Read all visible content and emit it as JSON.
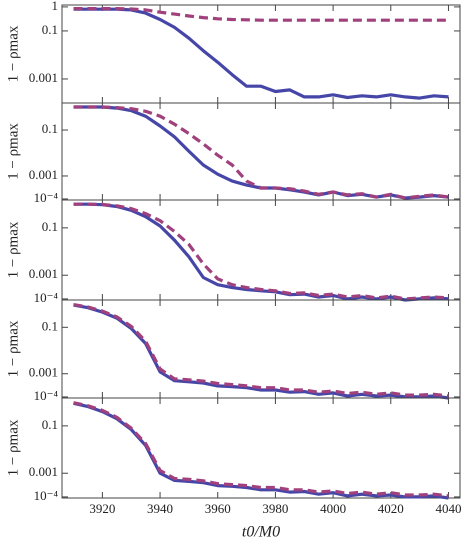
{
  "chart_data": [
    {
      "type": "line",
      "ylabel": "1 − ρmax",
      "log_y": true,
      "xlim": [
        3906,
        4044
      ],
      "ylim": [
        0.0001,
        1.2
      ],
      "yticks": [
        1,
        0.1,
        0.001
      ],
      "x": [
        3910,
        3915,
        3920,
        3925,
        3930,
        3935,
        3940,
        3945,
        3950,
        3955,
        3960,
        3965,
        3970,
        3975,
        3980,
        3985,
        3990,
        3995,
        4000,
        4005,
        4010,
        4015,
        4020,
        4025,
        4030,
        4035,
        4040
      ],
      "series": [
        {
          "color": "#4646a8",
          "dash": false,
          "values": [
            0.8,
            0.8,
            0.8,
            0.8,
            0.75,
            0.55,
            0.3,
            0.14,
            0.05,
            0.015,
            0.005,
            0.0015,
            0.0005,
            0.0005,
            0.0003,
            0.00035,
            0.00018,
            0.00018,
            0.00022,
            0.00017,
            0.0002,
            0.00018,
            0.00022,
            0.00018,
            0.00016,
            0.0002,
            0.00018
          ]
        },
        {
          "color": "#a0407c",
          "dash": true,
          "values": [
            0.85,
            0.85,
            0.85,
            0.85,
            0.82,
            0.75,
            0.6,
            0.5,
            0.42,
            0.36,
            0.32,
            0.3,
            0.29,
            0.28,
            0.28,
            0.28,
            0.28,
            0.28,
            0.28,
            0.28,
            0.28,
            0.28,
            0.28,
            0.28,
            0.28,
            0.28,
            0.28
          ]
        }
      ]
    },
    {
      "type": "line",
      "ylabel": "1 − ρmax",
      "log_y": true,
      "xlim": [
        3906,
        4044
      ],
      "ylim": [
        9e-05,
        1.5
      ],
      "yticks": [
        0.1,
        0.001,
        {
          "value": 0.0001,
          "label": "10⁻⁴"
        }
      ],
      "x": [
        3910,
        3915,
        3920,
        3925,
        3930,
        3935,
        3940,
        3945,
        3950,
        3955,
        3960,
        3965,
        3970,
        3975,
        3980,
        3985,
        3990,
        3995,
        4000,
        4005,
        4010,
        4015,
        4020,
        4025,
        4030,
        4035,
        4040
      ],
      "series": [
        {
          "color": "#4646a8",
          "dash": false,
          "values": [
            1.0,
            1.0,
            1.0,
            0.9,
            0.7,
            0.4,
            0.15,
            0.05,
            0.012,
            0.003,
            0.0012,
            0.0006,
            0.0004,
            0.0003,
            0.0003,
            0.00025,
            0.0002,
            0.00015,
            0.0002,
            0.00014,
            0.00016,
            0.00012,
            0.00015,
            0.00011,
            0.00012,
            0.00014,
            0.00012
          ]
        },
        {
          "color": "#a0407c",
          "dash": true,
          "values": [
            1.0,
            1.0,
            1.0,
            0.95,
            0.85,
            0.65,
            0.4,
            0.18,
            0.07,
            0.025,
            0.008,
            0.003,
            0.0006,
            0.0003,
            0.0003,
            0.00028,
            0.00022,
            0.00016,
            0.0002,
            0.00015,
            0.00017,
            0.00012,
            0.00016,
            0.00011,
            0.00013,
            0.00015,
            0.00012
          ]
        }
      ]
    },
    {
      "type": "line",
      "ylabel": "1 − ρmax",
      "log_y": true,
      "xlim": [
        3906,
        4044
      ],
      "ylim": [
        9e-05,
        1.5
      ],
      "yticks": [
        0.1,
        0.001,
        {
          "value": 0.0001,
          "label": "10⁻⁴"
        }
      ],
      "x": [
        3910,
        3915,
        3920,
        3925,
        3930,
        3935,
        3940,
        3945,
        3950,
        3955,
        3960,
        3965,
        3970,
        3975,
        3980,
        3985,
        3990,
        3995,
        4000,
        4005,
        4010,
        4015,
        4020,
        4025,
        4030,
        4035,
        4040
      ],
      "series": [
        {
          "color": "#4646a8",
          "dash": false,
          "values": [
            1.0,
            1.0,
            0.95,
            0.8,
            0.55,
            0.3,
            0.12,
            0.03,
            0.006,
            0.0008,
            0.0004,
            0.0003,
            0.00025,
            0.00022,
            0.0002,
            0.00015,
            0.00016,
            0.00012,
            0.00014,
            0.0001,
            0.00012,
            0.0001,
            0.00012,
            9e-05,
            0.0001,
            0.00011,
            0.0001
          ]
        },
        {
          "color": "#a0407c",
          "dash": true,
          "values": [
            1.0,
            1.0,
            0.97,
            0.85,
            0.65,
            0.4,
            0.2,
            0.07,
            0.02,
            0.003,
            0.0007,
            0.0004,
            0.0003,
            0.00025,
            0.00022,
            0.00017,
            0.00018,
            0.00014,
            0.00016,
            0.00012,
            0.00014,
            0.00011,
            0.00013,
            0.0001,
            0.00011,
            0.00012,
            0.00011
          ]
        }
      ]
    },
    {
      "type": "line",
      "ylabel": "1 − ρmax",
      "log_y": true,
      "xlim": [
        3906,
        4044
      ],
      "ylim": [
        9e-05,
        1.5
      ],
      "yticks": [
        0.1,
        0.001,
        {
          "value": 0.0001,
          "label": "10⁻⁴"
        }
      ],
      "x": [
        3910,
        3915,
        3920,
        3925,
        3930,
        3935,
        3940,
        3945,
        3950,
        3955,
        3960,
        3965,
        3970,
        3975,
        3980,
        3985,
        3990,
        3995,
        4000,
        4005,
        4010,
        4015,
        4020,
        4025,
        4030,
        4035,
        4040
      ],
      "series": [
        {
          "color": "#4646a8",
          "dash": false,
          "values": [
            0.9,
            0.7,
            0.45,
            0.25,
            0.09,
            0.02,
            0.0012,
            0.0005,
            0.00045,
            0.0004,
            0.0003,
            0.00028,
            0.00025,
            0.0002,
            0.0002,
            0.00016,
            0.00017,
            0.00013,
            0.00015,
            0.00011,
            0.00013,
            0.00011,
            0.00012,
            0.0001,
            0.0001,
            0.00011,
            9e-05
          ]
        },
        {
          "color": "#a0407c",
          "dash": true,
          "values": [
            0.95,
            0.75,
            0.5,
            0.28,
            0.11,
            0.025,
            0.0016,
            0.0006,
            0.00055,
            0.00048,
            0.00038,
            0.00034,
            0.0003,
            0.00025,
            0.00025,
            0.0002,
            0.0002,
            0.00016,
            0.00018,
            0.00014,
            0.00016,
            0.00013,
            0.00015,
            0.00012,
            0.00012,
            0.00013,
            0.00011
          ]
        }
      ]
    },
    {
      "type": "line",
      "ylabel": "1 − ρmax",
      "xlabel": "t0/M0",
      "log_y": true,
      "xlim": [
        3906,
        4044
      ],
      "ylim": [
        9e-05,
        1.5
      ],
      "xticks": [
        3920,
        3940,
        3960,
        3980,
        4000,
        4020,
        4040
      ],
      "yticks": [
        0.1,
        0.001,
        {
          "value": 0.0001,
          "label": "10⁻⁴"
        }
      ],
      "x": [
        3910,
        3915,
        3920,
        3925,
        3930,
        3935,
        3940,
        3945,
        3950,
        3955,
        3960,
        3965,
        3970,
        3975,
        3980,
        3985,
        3990,
        3995,
        4000,
        4005,
        4010,
        4015,
        4020,
        4025,
        4030,
        4035,
        4040
      ],
      "series": [
        {
          "color": "#4646a8",
          "dash": false,
          "values": [
            0.9,
            0.65,
            0.4,
            0.2,
            0.07,
            0.015,
            0.001,
            0.0005,
            0.00045,
            0.0004,
            0.0003,
            0.00028,
            0.00025,
            0.0002,
            0.0002,
            0.00016,
            0.00017,
            0.00013,
            0.00015,
            0.00011,
            0.00013,
            0.00011,
            0.00012,
            0.0001,
            0.0001,
            0.00011,
            9e-05
          ]
        },
        {
          "color": "#a0407c",
          "dash": true,
          "values": [
            0.95,
            0.7,
            0.45,
            0.23,
            0.08,
            0.018,
            0.0013,
            0.0006,
            0.00055,
            0.00048,
            0.00036,
            0.00033,
            0.0003,
            0.00025,
            0.00025,
            0.0002,
            0.0002,
            0.00016,
            0.00018,
            0.00014,
            0.00016,
            0.00013,
            0.00015,
            0.00012,
            0.00012,
            0.00013,
            0.00011
          ]
        }
      ]
    }
  ]
}
